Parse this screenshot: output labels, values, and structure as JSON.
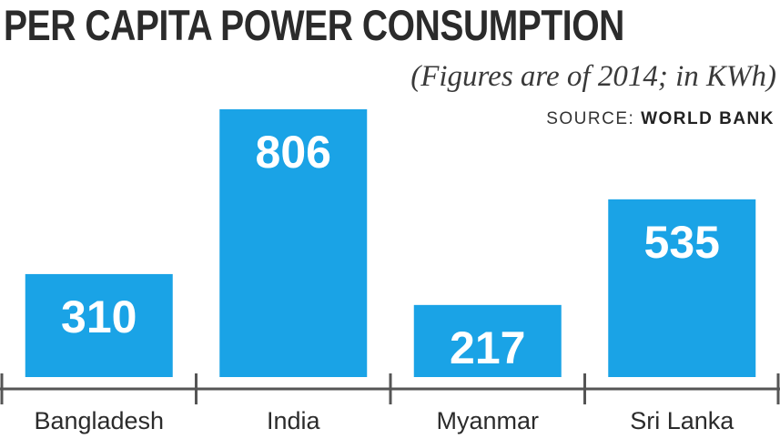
{
  "chart_data": {
    "type": "bar",
    "title": "PER CAPITA POWER CONSUMPTION",
    "subtitle": "(Figures are of 2014; in KWh)",
    "source_label": "SOURCE:",
    "source_name": "WORLD BANK",
    "categories": [
      "Bangladesh",
      "India",
      "Myanmar",
      "Sri Lanka"
    ],
    "values": [
      310,
      806,
      217,
      535
    ],
    "unit": "KWh",
    "ylim": [
      0,
      806
    ],
    "grid": false,
    "colors": {
      "bar": "#1aa3e6",
      "label": "#ffffff",
      "axis": "#555555",
      "text": "#2b2b2b"
    }
  }
}
